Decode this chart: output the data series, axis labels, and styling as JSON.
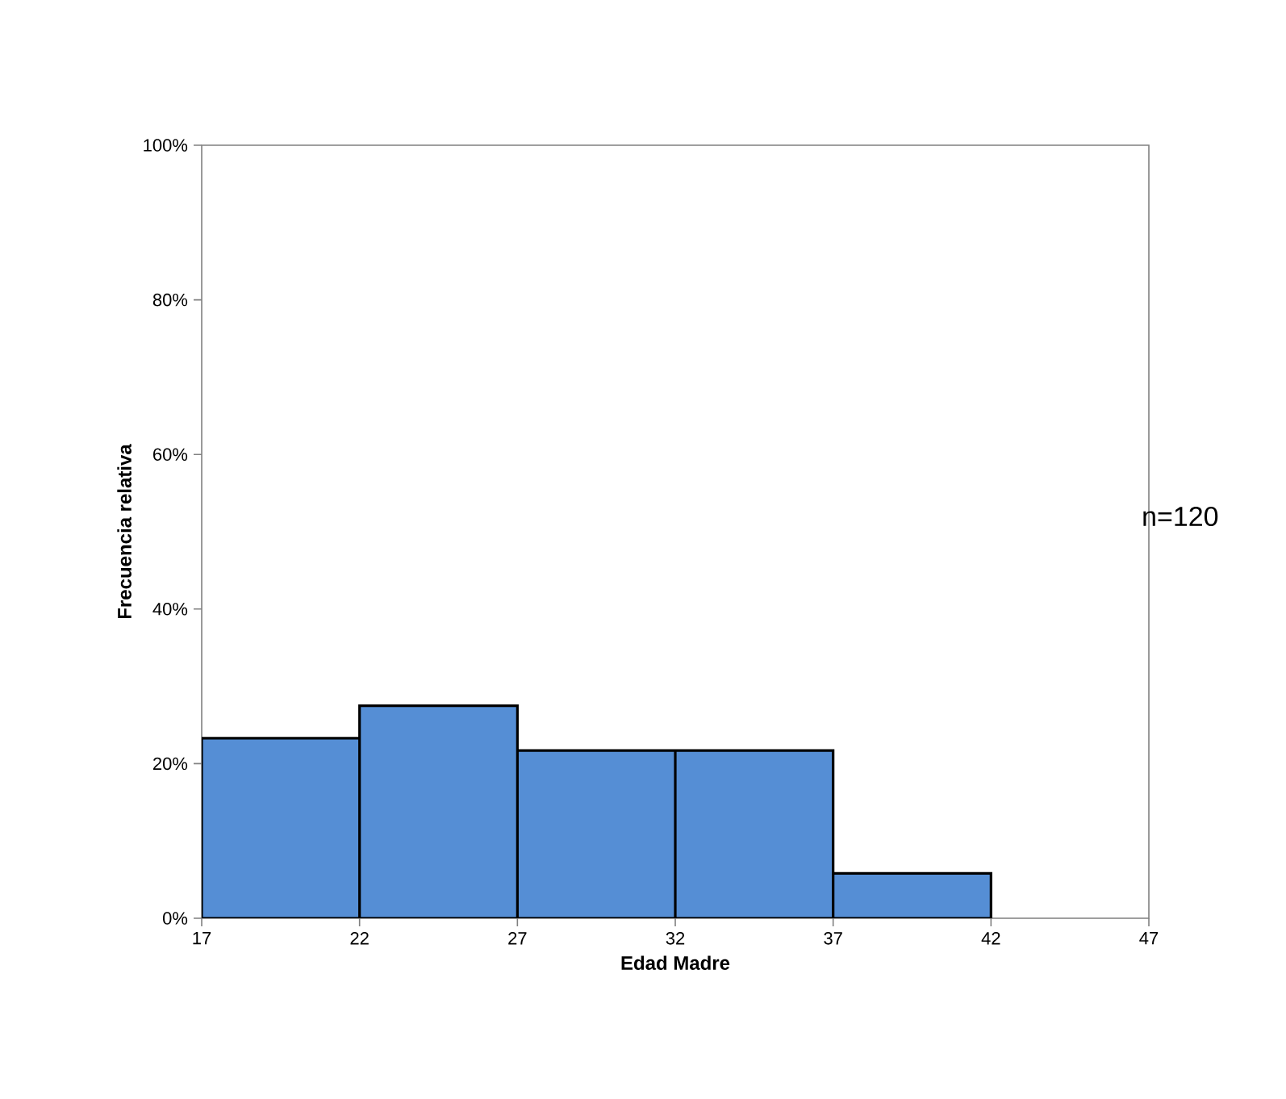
{
  "chart_data": {
    "type": "histogram",
    "xlabel": "Edad Madre",
    "ylabel": "Frecuencia relativa",
    "bins": [
      17,
      22,
      27,
      32,
      37,
      42
    ],
    "values": [
      23.3,
      27.5,
      21.7,
      21.7,
      5.8
    ],
    "color": "#558ed5",
    "xlim": [
      17,
      47
    ],
    "xticks": [
      17,
      22,
      27,
      32,
      37,
      42,
      47
    ],
    "ylim": [
      0,
      100
    ],
    "yticks": [
      {
        "value": 0,
        "label": "0%"
      },
      {
        "value": 20,
        "label": "20%"
      },
      {
        "value": 40,
        "label": "40%"
      },
      {
        "value": 60,
        "label": "60%"
      },
      {
        "value": 80,
        "label": "80%"
      },
      {
        "value": 100,
        "label": "100%"
      }
    ],
    "annotations": [
      "n=120"
    ],
    "grid": false
  }
}
